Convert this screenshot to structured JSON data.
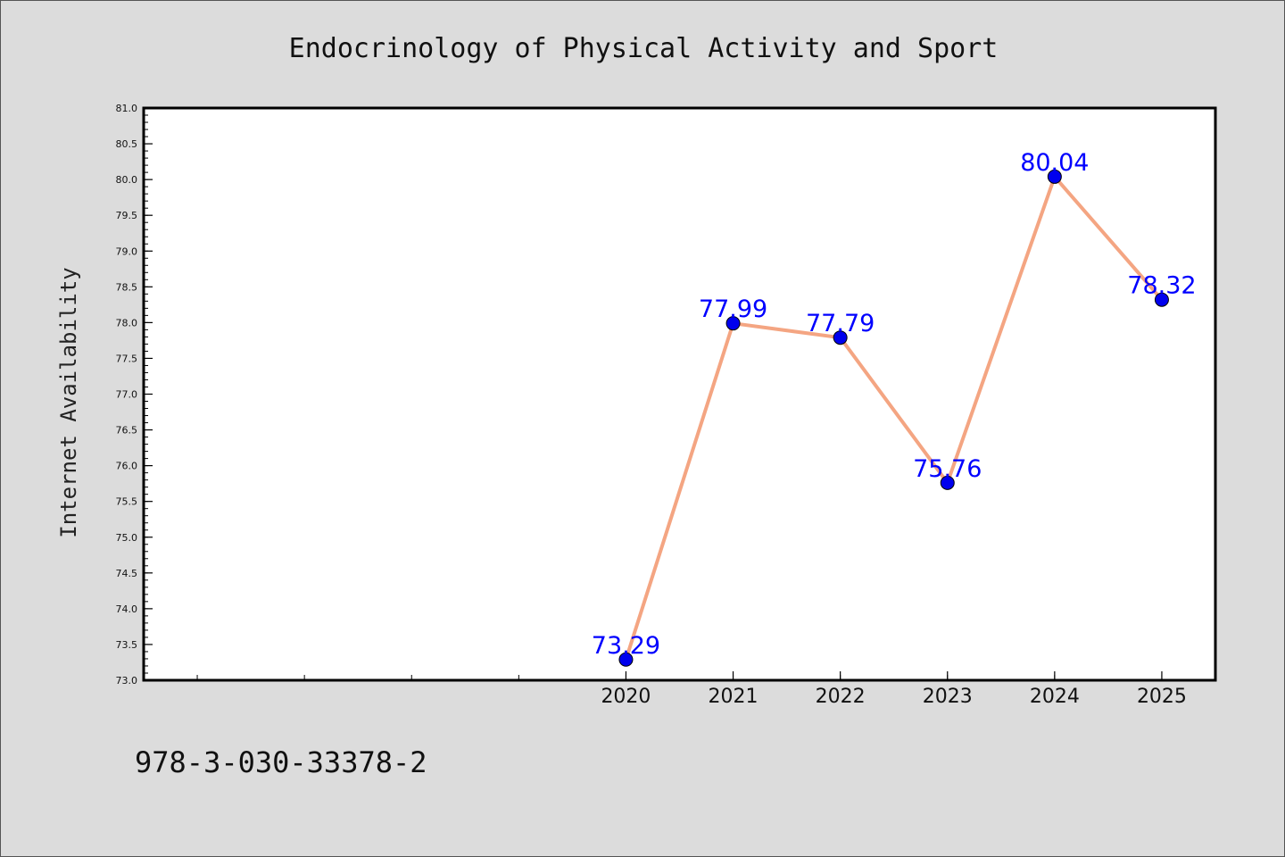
{
  "chart_data": {
    "type": "line",
    "title": "Endocrinology of Physical Activity and Sport",
    "xlabel": "",
    "ylabel": "Internet Availability",
    "footer": "978-3-030-33378-2",
    "x": [
      2020,
      2021,
      2022,
      2023,
      2024,
      2025
    ],
    "x_tick_labels": [
      "2020",
      "2021",
      "2022",
      "2023",
      "2024",
      "2025"
    ],
    "series": [
      {
        "values": [
          73.29,
          77.99,
          77.79,
          75.76,
          80.04,
          78.32
        ],
        "labels": [
          "73.29",
          "77.99",
          "77.79",
          "75.76",
          "80.04",
          "78.32"
        ]
      }
    ],
    "ylim": [
      73.0,
      81.0
    ],
    "y_ticks": [
      "73.0",
      "73.5",
      "74.0",
      "74.5",
      "75.0",
      "75.5",
      "76.0",
      "76.5",
      "77.0",
      "77.5",
      "78.0",
      "78.5",
      "79.0",
      "79.5",
      "80.0",
      "80.5",
      "81.0"
    ],
    "xlim": [
      2015.5,
      2025.5
    ],
    "grid": false,
    "legend": "none",
    "colors": {
      "line": "#f4a582",
      "marker": "#0000ee",
      "data_label": "#0000ff",
      "plot_bg": "#ffffff",
      "page_bg": "#dcdcdc"
    }
  }
}
